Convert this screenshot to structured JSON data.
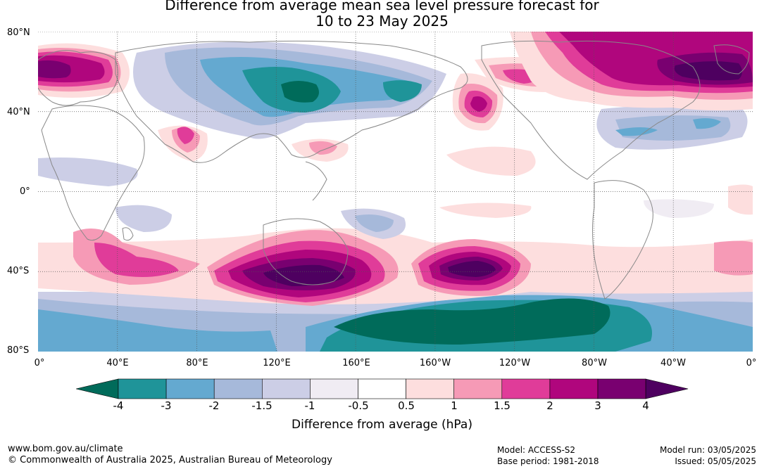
{
  "title": {
    "line1": "Difference from average mean sea level pressure forecast for",
    "line2": "10 to 23 May 2025"
  },
  "map": {
    "latitude_labels": [
      "80°N",
      "40°N",
      "0°",
      "40°S",
      "80°S"
    ],
    "longitude_labels": [
      "0°",
      "40°E",
      "80°E",
      "120°E",
      "160°E",
      "160°W",
      "120°W",
      "80°W",
      "40°W",
      "0°"
    ],
    "gridlines": true,
    "colors": {
      "land_outline": "#888888",
      "background": "#ffffff"
    }
  },
  "colorbar": {
    "tick_labels": [
      "-4",
      "-3",
      "-2",
      "-1.5",
      "-1",
      "-0.5",
      "0.5",
      "1",
      "1.5",
      "2",
      "3",
      "4"
    ],
    "colors": [
      "#006b5a",
      "#1f9499",
      "#64a9d0",
      "#a6b9da",
      "#cccee6",
      "#f0ecf3",
      "#ffffff",
      "#fddede",
      "#f69ab6",
      "#e03c99",
      "#b0067d",
      "#790070",
      "#4e0060"
    ],
    "label": "Difference from average (hPa)",
    "extends": "both"
  },
  "footer": {
    "website": "www.bom.gov.au/climate",
    "copyright": "© Commonwealth of Australia 2025, Australian Bureau of Meteorology",
    "model": "Model: ACCESS-S2",
    "base_period": "Base period: 1981-2018",
    "model_run": "Model run: 03/05/2025",
    "issued": "Issued: 05/05/2025"
  }
}
